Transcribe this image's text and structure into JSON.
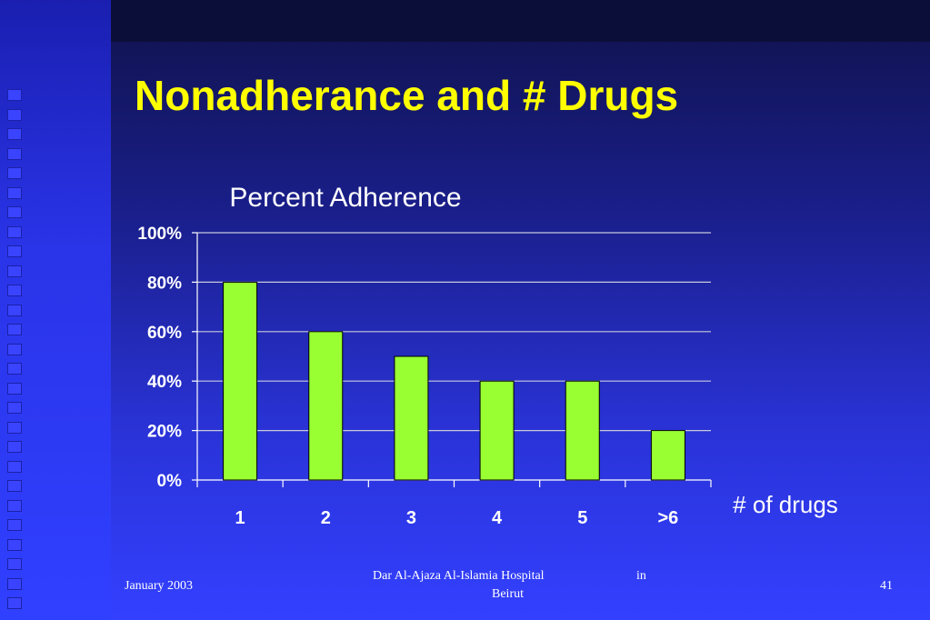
{
  "slide": {
    "title": "Nonadherance and # Drugs",
    "footer": {
      "date": "January 2003",
      "org_line1": "Dar Al-Ajaza Al-Islamia Hospital",
      "org_in": "in",
      "org_line2": "Beirut",
      "page_number": "41"
    }
  },
  "chart_data": {
    "type": "bar",
    "title": "Percent Adherence",
    "xlabel": "# of drugs",
    "ylabel": "",
    "categories": [
      "1",
      "2",
      "3",
      "4",
      "5",
      ">6"
    ],
    "values": [
      80,
      60,
      50,
      40,
      40,
      20
    ],
    "ylim": [
      0,
      100
    ],
    "yticks": [
      "0%",
      "20%",
      "40%",
      "60%",
      "80%",
      "100%"
    ],
    "grid": true,
    "bar_color": "#99ff33",
    "text_color": "#ffffff"
  }
}
